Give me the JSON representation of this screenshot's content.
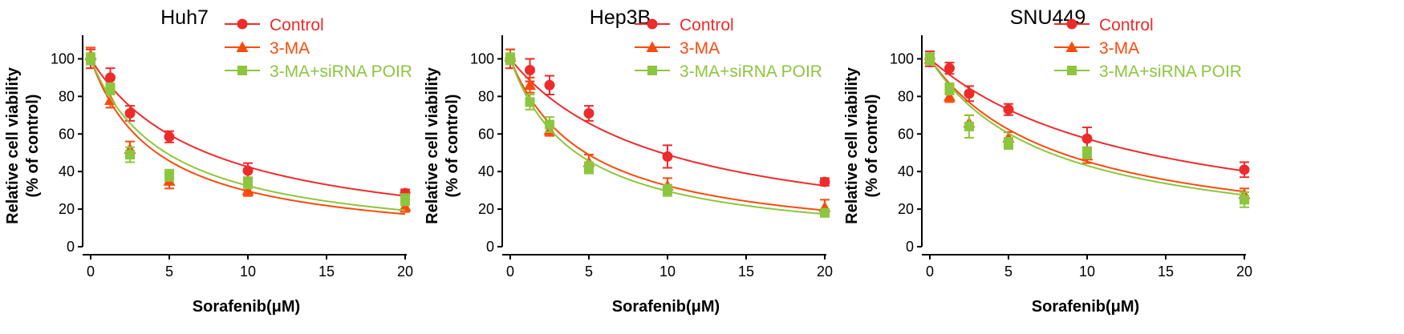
{
  "colors": {
    "Control": "#ee2b2b",
    "3-MA": "#fb4a0c",
    "3-MA+siRNA POIR": "#8cc63e",
    "axis": "#000000"
  },
  "chart_data": [
    {
      "type": "scatter",
      "title": "Huh7",
      "xlabel": "Sorafenib(μM)",
      "ylabel": [
        "Relative cell viability",
        "(% of control)"
      ],
      "xlim": [
        0,
        20
      ],
      "ylim": [
        0,
        110
      ],
      "xticks": [
        0,
        5,
        10,
        15,
        20
      ],
      "yticks": [
        0,
        20,
        40,
        60,
        80,
        100
      ],
      "legend": "top-right",
      "x": [
        0,
        1.25,
        2.5,
        5,
        10,
        20
      ],
      "series": [
        {
          "name": "Control",
          "marker": "circle",
          "values": [
            100,
            90,
            71,
            58.5,
            40.5,
            28.5
          ],
          "err": [
            5,
            5,
            4,
            3,
            4,
            2
          ],
          "ic50": 7.4
        },
        {
          "name": "3-MA",
          "marker": "triangle",
          "values": [
            102,
            78,
            52,
            35,
            30,
            21.5
          ],
          "err": [
            4,
            4,
            4,
            4,
            3,
            3
          ],
          "ic50": 4.2
        },
        {
          "name": "3-MA+siRNA POIR",
          "marker": "square",
          "values": [
            100,
            84,
            49,
            38,
            34,
            25
          ],
          "err": [
            3,
            3,
            4,
            3,
            3,
            3
          ],
          "ic50": 4.8
        }
      ]
    },
    {
      "type": "scatter",
      "title": "Hep3B",
      "xlabel": "Sorafenib(μM)",
      "ylabel": [
        "Relative cell viability",
        "(% of control)"
      ],
      "xlim": [
        0,
        20
      ],
      "ylim": [
        0,
        110
      ],
      "xticks": [
        0,
        5,
        10,
        15,
        20
      ],
      "yticks": [
        0,
        20,
        40,
        60,
        80,
        100
      ],
      "legend": "top-right",
      "x": [
        0,
        1.25,
        2.5,
        5,
        10,
        20
      ],
      "series": [
        {
          "name": "Control",
          "marker": "circle",
          "values": [
            100,
            94,
            86,
            71,
            48,
            34.5
          ],
          "err": [
            5,
            6,
            5,
            4,
            6,
            2
          ],
          "ic50": 9.6
        },
        {
          "name": "3-MA",
          "marker": "triangle",
          "values": [
            101,
            86,
            62,
            45,
            32.5,
            21
          ],
          "err": [
            4,
            4,
            3,
            4,
            4,
            4
          ],
          "ic50": 4.8
        },
        {
          "name": "3-MA+siRNA POIR",
          "marker": "square",
          "values": [
            100,
            77,
            65,
            42,
            30,
            18
          ],
          "err": [
            3,
            4,
            4,
            3,
            3,
            2
          ],
          "ic50": 4.2
        }
      ]
    },
    {
      "type": "scatter",
      "title": "SNU449",
      "xlabel": "Sorafenib(μM)",
      "ylabel": [
        "Relative cell viability",
        "(% of control)"
      ],
      "xlim": [
        0,
        20
      ],
      "ylim": [
        0,
        110
      ],
      "xticks": [
        0,
        5,
        10,
        15,
        20
      ],
      "yticks": [
        0,
        20,
        40,
        60,
        80,
        100
      ],
      "legend": "top-right",
      "x": [
        0,
        1.25,
        2.5,
        5,
        10,
        20
      ],
      "series": [
        {
          "name": "Control",
          "marker": "circle",
          "values": [
            100,
            95,
            81.5,
            73,
            57.5,
            41
          ],
          "err": [
            4,
            3,
            4,
            3,
            6,
            4
          ],
          "ic50": 13.5
        },
        {
          "name": "3-MA",
          "marker": "triangle",
          "values": [
            100,
            80,
            66,
            58,
            48.5,
            28
          ],
          "err": [
            3,
            3,
            4,
            3,
            4,
            3
          ],
          "ic50": 8.3
        },
        {
          "name": "3-MA+siRNA POIR",
          "marker": "square",
          "values": [
            100,
            84,
            64,
            55,
            50,
            25
          ],
          "err": [
            3,
            3,
            6,
            3,
            3,
            4
          ],
          "ic50": 7.6
        }
      ]
    }
  ]
}
